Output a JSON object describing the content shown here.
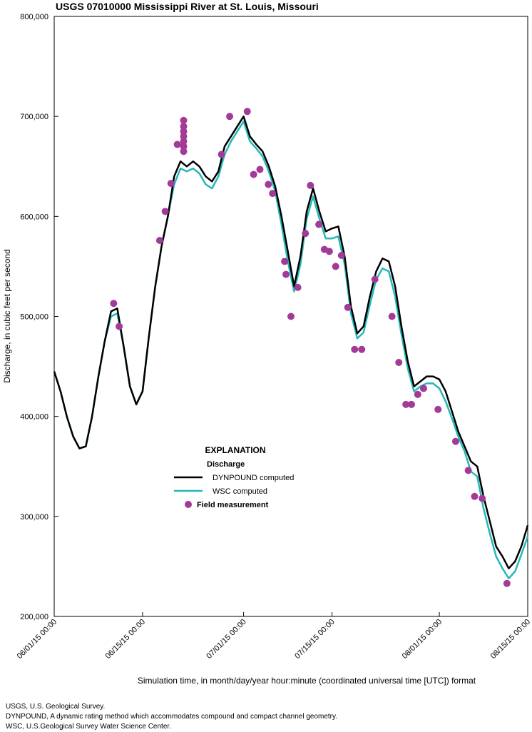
{
  "chart_data": {
    "type": "line",
    "title": "USGS 07010000 Mississippi River at St. Louis, Missouri",
    "x_label": "Simulation time, in month/day/year hour:minute (coordinated universal time [UTC]) format",
    "y_label": "Discharge, in cubic feet per second",
    "legend_title": "EXPLANATION",
    "legend_subtitle": "Discharge",
    "notes": [
      "USGS, U.S. Geological Survey.",
      "DYNPOUND, A dynamic rating method which accommodates compound and compact channel geometry.",
      "WSC, U.S.Geological Survey Water Science Center."
    ],
    "xlim": [
      "06/01/15 00:00",
      "08/15/15 00:00"
    ],
    "xticks": [
      "06/01/15 00:00",
      "06/15/15 00:00",
      "07/01/15 00:00",
      "07/15/15 00:00",
      "08/01/15 00:00",
      "08/15/15 00:00"
    ],
    "ylim": [
      200000,
      800000
    ],
    "yticks": [
      {
        "value": 200000,
        "label": "200,000"
      },
      {
        "value": 300000,
        "label": "300,000"
      },
      {
        "value": 400000,
        "label": "400,000"
      },
      {
        "value": 500000,
        "label": "500,000"
      },
      {
        "value": 600000,
        "label": "600,000"
      },
      {
        "value": 700000,
        "label": "700,000"
      },
      {
        "value": 800000,
        "label": "800,000"
      }
    ],
    "x": [
      "06/01/15 00:00",
      "06/02/15 00:00",
      "06/03/15 00:00",
      "06/04/15 00:00",
      "06/05/15 00:00",
      "06/06/15 00:00",
      "06/07/15 00:00",
      "06/08/15 00:00",
      "06/09/15 00:00",
      "06/10/15 00:00",
      "06/11/15 00:00",
      "06/12/15 00:00",
      "06/13/15 00:00",
      "06/14/15 00:00",
      "06/15/15 00:00",
      "06/16/15 00:00",
      "06/17/15 00:00",
      "06/18/15 00:00",
      "06/19/15 00:00",
      "06/20/15 00:00",
      "06/21/15 00:00",
      "06/22/15 00:00",
      "06/23/15 00:00",
      "06/24/15 00:00",
      "06/25/15 00:00",
      "06/26/15 00:00",
      "06/27/15 00:00",
      "06/28/15 00:00",
      "06/29/15 00:00",
      "06/30/15 00:00",
      "07/01/15 00:00",
      "07/02/15 00:00",
      "07/03/15 00:00",
      "07/04/15 00:00",
      "07/05/15 00:00",
      "07/06/15 00:00",
      "07/07/15 00:00",
      "07/08/15 00:00",
      "07/09/15 00:00",
      "07/10/15 00:00",
      "07/11/15 00:00",
      "07/12/15 00:00",
      "07/13/15 00:00",
      "07/14/15 00:00",
      "07/15/15 00:00",
      "07/16/15 00:00",
      "07/17/15 00:00",
      "07/18/15 00:00",
      "07/19/15 00:00",
      "07/20/15 00:00",
      "07/21/15 00:00",
      "07/22/15 00:00",
      "07/23/15 00:00",
      "07/24/15 00:00",
      "07/25/15 00:00",
      "07/26/15 00:00",
      "07/27/15 00:00",
      "07/28/15 00:00",
      "07/29/15 00:00",
      "07/30/15 00:00",
      "07/31/15 00:00",
      "08/01/15 00:00",
      "08/02/15 00:00",
      "08/03/15 00:00",
      "08/04/15 00:00",
      "08/05/15 00:00",
      "08/06/15 00:00",
      "08/07/15 00:00",
      "08/08/15 00:00",
      "08/09/15 00:00",
      "08/10/15 00:00",
      "08/11/15 00:00",
      "08/12/15 00:00",
      "08/13/15 00:00",
      "08/14/15 00:00",
      "08/15/15 00:00"
    ],
    "series": [
      {
        "name": "DYNPOUND computed",
        "type": "line",
        "color": "#000000",
        "values": [
          445000,
          425000,
          400000,
          380000,
          368000,
          370000,
          400000,
          440000,
          475000,
          505000,
          508000,
          470000,
          430000,
          412000,
          425000,
          480000,
          530000,
          570000,
          600000,
          640000,
          655000,
          650000,
          655000,
          650000,
          640000,
          635000,
          645000,
          670000,
          680000,
          690000,
          700000,
          680000,
          672000,
          665000,
          650000,
          630000,
          600000,
          565000,
          530000,
          560000,
          605000,
          628000,
          605000,
          585000,
          588000,
          590000,
          560000,
          510000,
          483000,
          490000,
          520000,
          545000,
          558000,
          555000,
          530000,
          490000,
          455000,
          430000,
          435000,
          440000,
          440000,
          437000,
          425000,
          405000,
          385000,
          370000,
          355000,
          350000,
          320000,
          295000,
          270000,
          260000,
          248000,
          255000,
          270000,
          291000
        ]
      },
      {
        "name": "WSC computed",
        "type": "line",
        "color": "#26b8b8",
        "values": [
          445000,
          425000,
          400000,
          380000,
          368000,
          370000,
          400000,
          440000,
          475000,
          500000,
          503000,
          470000,
          430000,
          412000,
          425000,
          480000,
          530000,
          570000,
          600000,
          632000,
          648000,
          645000,
          648000,
          643000,
          632000,
          628000,
          640000,
          662000,
          675000,
          685000,
          695000,
          675000,
          668000,
          660000,
          645000,
          625000,
          592000,
          555000,
          525000,
          552000,
          598000,
          620000,
          598000,
          578000,
          578000,
          580000,
          552000,
          503000,
          478000,
          484000,
          512000,
          537000,
          548000,
          545000,
          520000,
          482000,
          448000,
          425000,
          430000,
          433000,
          433000,
          428000,
          415000,
          398000,
          380000,
          365000,
          345000,
          340000,
          308000,
          283000,
          260000,
          248000,
          238000,
          245000,
          262000,
          280000
        ]
      },
      {
        "name": "Field measurement",
        "type": "scatter",
        "color": "#a33a98",
        "x": [
          "06/10/15 10:00",
          "06/11/15 07:00",
          "06/17/15 17:00",
          "06/18/15 14:00",
          "06/19/15 12:00",
          "06/20/15 12:00",
          "06/21/15 12:00",
          "06/21/15 12:00",
          "06/21/15 12:00",
          "06/21/15 12:00",
          "06/21/15 12:00",
          "06/21/15 12:00",
          "06/21/15 12:00",
          "06/27/15 12:00",
          "06/28/15 19:00",
          "07/01/15 14:00",
          "07/02/15 14:00",
          "07/03/15 14:00",
          "07/04/15 22:00",
          "07/05/15 14:00",
          "07/07/15 12:00",
          "07/07/15 17:00",
          "07/08/15 12:00",
          "07/09/15 14:00",
          "07/10/15 19:00",
          "07/11/15 14:00",
          "07/12/15 22:00",
          "07/13/15 19:00",
          "07/14/15 14:00",
          "07/15/15 14:00",
          "07/16/15 12:00",
          "07/17/15 12:00",
          "07/18/15 14:00",
          "07/19/15 17:00",
          "07/21/15 19:00",
          "07/24/15 12:00",
          "07/25/15 14:00",
          "07/26/15 17:00",
          "07/27/15 14:00",
          "07/28/15 14:00",
          "07/29/15 12:00",
          "07/31/15 19:00",
          "08/03/15 14:00",
          "08/05/15 14:00",
          "08/06/15 14:00",
          "08/07/15 19:00",
          "08/11/15 17:00"
        ],
        "values": [
          513000,
          490000,
          576000,
          605000,
          633000,
          672000,
          696000,
          690000,
          685000,
          680000,
          675000,
          670000,
          665000,
          662000,
          700000,
          705000,
          642000,
          647000,
          632000,
          623000,
          555000,
          542000,
          500000,
          529000,
          583000,
          631000,
          592000,
          567000,
          565000,
          550000,
          561000,
          509000,
          467000,
          467000,
          537000,
          500000,
          454000,
          412000,
          412000,
          422000,
          428000,
          407000,
          375000,
          346000,
          320000,
          318000,
          233000
        ]
      }
    ]
  }
}
